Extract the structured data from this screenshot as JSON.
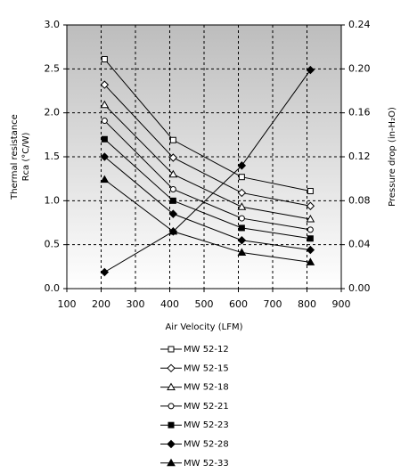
{
  "chart_data": {
    "type": "line",
    "x_label": "Air Velocity (LFM)",
    "y_label": [
      "Thermal resistance",
      "Rca (°C/W)"
    ],
    "y2_label": "Pressure drop (in-H₂O)",
    "xlim": [
      100,
      900
    ],
    "xticks": [
      100,
      200,
      300,
      400,
      500,
      600,
      700,
      800,
      900
    ],
    "ylim": [
      0,
      3.0
    ],
    "yticks": [
      {
        "value": 0,
        "label": "0.0"
      },
      0.5,
      {
        "value": 1,
        "label": "1.0"
      },
      1.5,
      {
        "value": 2,
        "label": "2.0"
      },
      2.5,
      {
        "value": 3,
        "label": "3.0"
      }
    ],
    "y2lim": [
      0,
      0.24
    ],
    "y2ticks": [
      {
        "value": 0,
        "label": "0.00"
      },
      0.04,
      0.08,
      0.12,
      0.16,
      {
        "value": 0.2,
        "label": "0.20"
      },
      0.24
    ],
    "grid": true,
    "legend": "bottom",
    "x": [
      210,
      410,
      610,
      810
    ],
    "series": [
      {
        "name": "MW 52-12",
        "color": "#000000",
        "marker": "square-open",
        "values": [
          2.61,
          1.69,
          1.27,
          1.11
        ]
      },
      {
        "name": "MW 52-15",
        "color": "#000000",
        "marker": "diamond-open",
        "values": [
          2.32,
          1.49,
          1.09,
          0.94
        ]
      },
      {
        "name": "MW 52-18",
        "color": "#000000",
        "marker": "triangle-open",
        "values": [
          2.09,
          1.3,
          0.93,
          0.79
        ]
      },
      {
        "name": "MW 52-21",
        "color": "#000000",
        "marker": "circle-open",
        "values": [
          1.91,
          1.13,
          0.8,
          0.67
        ]
      },
      {
        "name": "MW 52-23",
        "color": "#000000",
        "marker": "square",
        "values": [
          1.7,
          1.0,
          0.69,
          0.57
        ]
      },
      {
        "name": "MW 52-28",
        "color": "#000000",
        "marker": "diamond",
        "values": [
          1.5,
          0.85,
          0.55,
          0.44
        ]
      },
      {
        "name": "MW 52-33",
        "color": "#000000",
        "marker": "triangle",
        "values": [
          1.24,
          0.65,
          0.41,
          0.3
        ]
      },
      {
        "axis": "y2",
        "color": "#000000",
        "marker": "diamond",
        "values": [
          0.015,
          0.052,
          0.112,
          0.199
        ]
      }
    ]
  }
}
